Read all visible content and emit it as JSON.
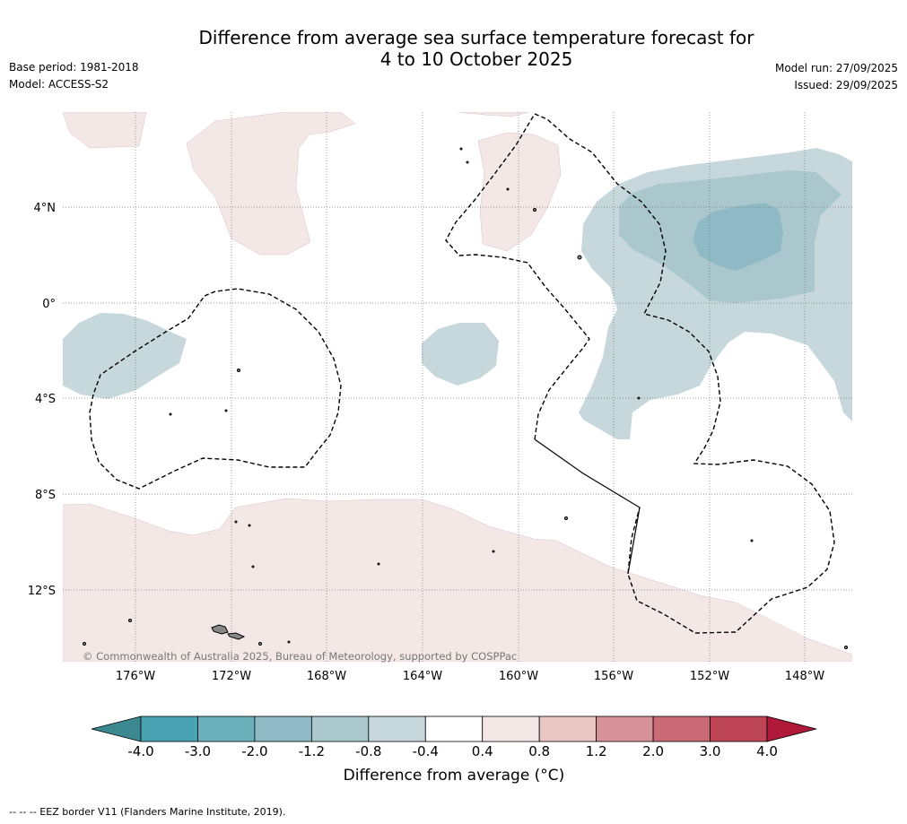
{
  "header": {
    "title_line1": "Difference from average sea surface temperature forecast for",
    "title_line2": "4 to 10 October 2025",
    "base_period": "Base period: 1981-2018",
    "model": "Model: ACCESS-S2",
    "model_run": "Model run: 27/09/2025",
    "issued": "Issued: 29/09/2025"
  },
  "map": {
    "lat_labels": [
      "4°N",
      "0°",
      "4°S",
      "8°S",
      "12°S"
    ],
    "lon_labels": [
      "176°W",
      "172°W",
      "168°W",
      "164°W",
      "160°W",
      "156°W",
      "152°W",
      "148°W"
    ],
    "copyright": "© Commonwealth of Australia 2025, Bureau of Meteorology, supported by COSPPac"
  },
  "colorbar": {
    "ticks": [
      "-4.0",
      "-3.0",
      "-2.0",
      "-1.2",
      "-0.8",
      "-0.4",
      "0.4",
      "0.8",
      "1.2",
      "2.0",
      "3.0",
      "4.0"
    ],
    "colors": [
      "#4aa3b3",
      "#6cb0bc",
      "#8fbac5",
      "#a9c7cc",
      "#c6d8dc",
      "#ffffff",
      "#f4e8e7",
      "#e8c6c4",
      "#d8939a",
      "#c96a76",
      "#be4656"
    ],
    "under_color": "#3b8891",
    "over_color": "#b0183a",
    "label": "Difference from average (°C)"
  },
  "footnote": "--  --  -- EEZ border V11 (Flanders Marine Institute, 2019)."
}
